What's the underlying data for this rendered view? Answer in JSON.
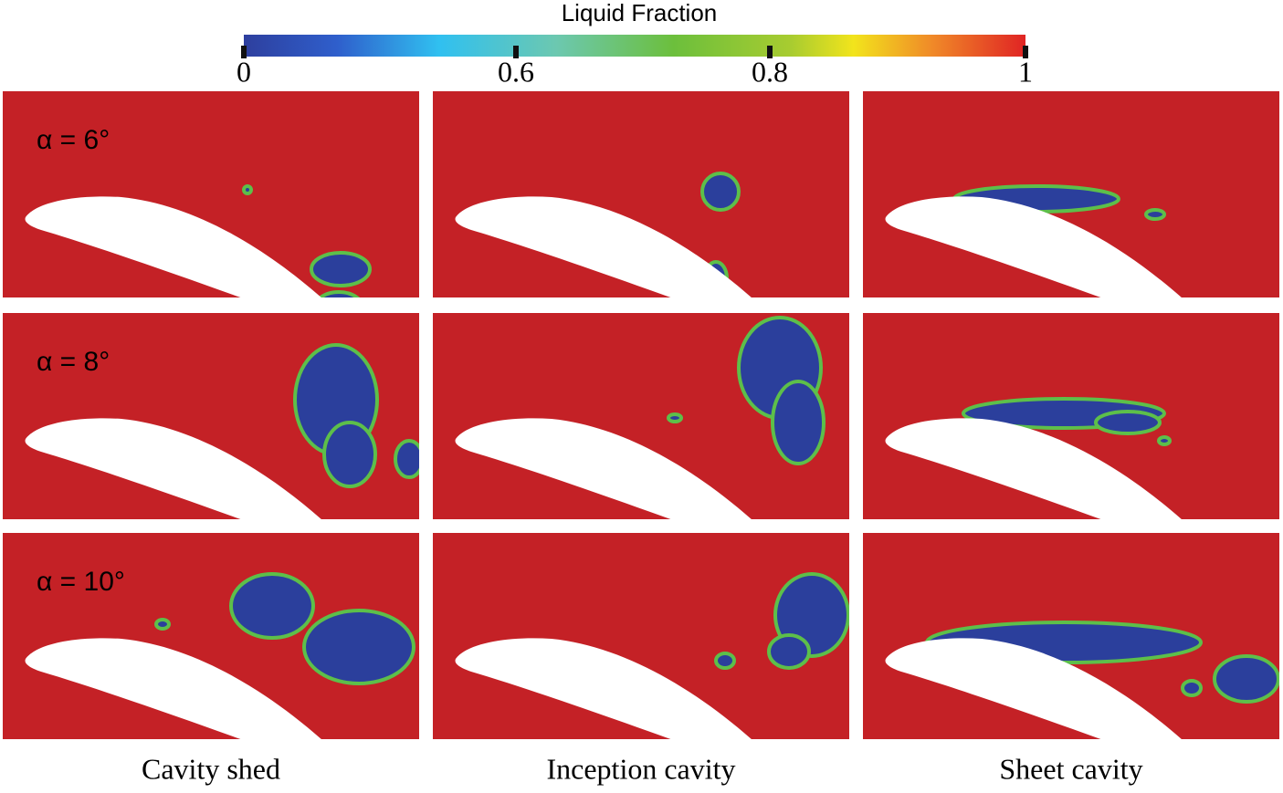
{
  "colorbar": {
    "title": "Liquid Fraction",
    "ticks": [
      "0",
      "0.6",
      "0.8",
      "1"
    ]
  },
  "rows": [
    "α = 6°",
    "α = 8°",
    "α = 10°"
  ],
  "columns": [
    "Cavity shed",
    "Inception cavity",
    "Sheet cavity"
  ]
}
